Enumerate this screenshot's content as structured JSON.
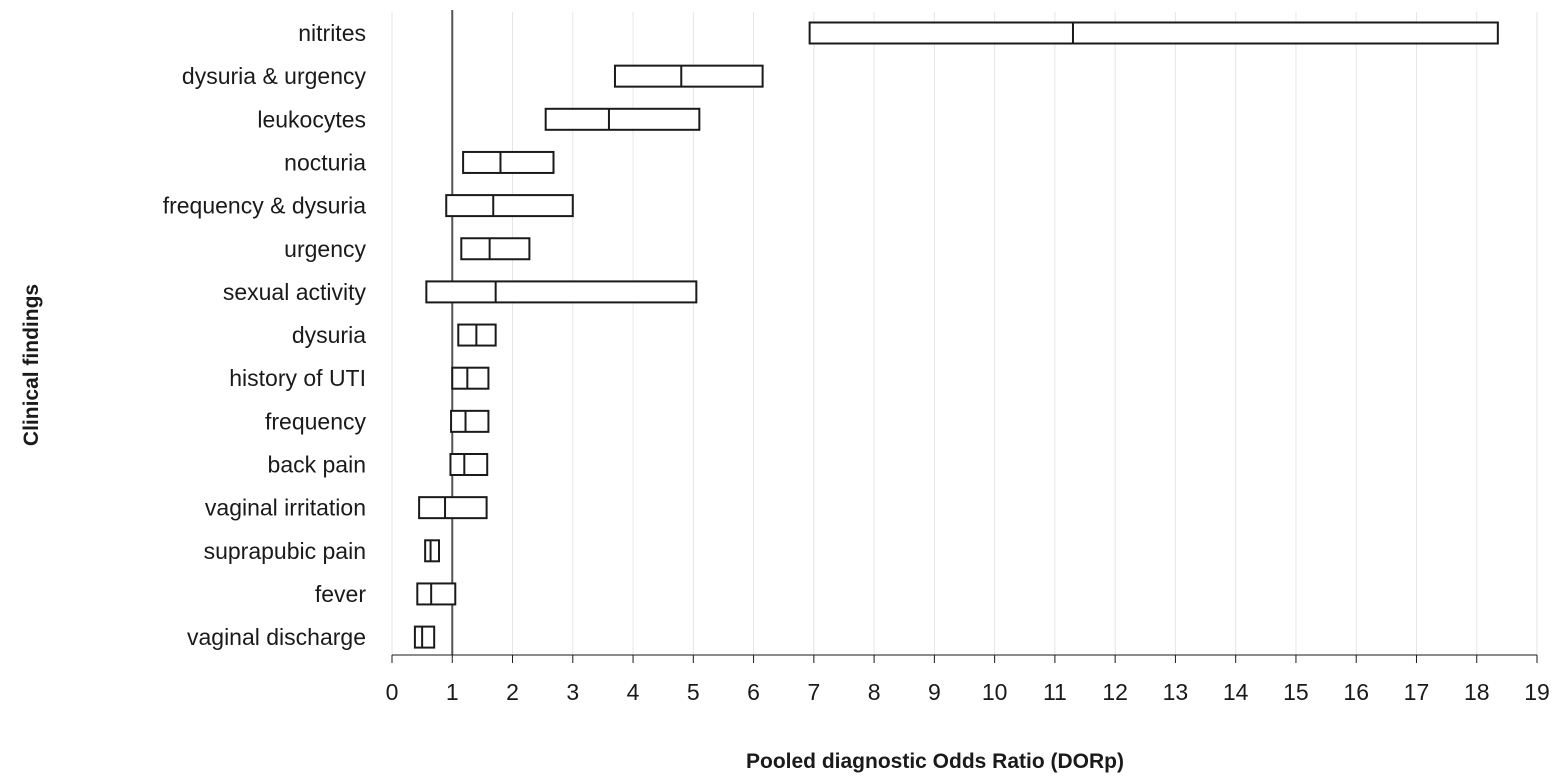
{
  "chart_data": {
    "type": "box",
    "title": "",
    "xlabel": "Pooled diagnostic Odds Ratio (DORp)",
    "ylabel": "Clinical findings",
    "xlim": [
      0,
      19
    ],
    "xticks": [
      0,
      1,
      2,
      3,
      4,
      5,
      6,
      7,
      8,
      9,
      10,
      11,
      12,
      13,
      14,
      15,
      16,
      17,
      18,
      19
    ],
    "reference_line": 1,
    "grid": "vertical",
    "legend": "none",
    "categories": [
      "nitrites",
      "dysuria & urgency",
      "leukocytes",
      "nocturia",
      "frequency & dysuria",
      "urgency",
      "sexual activity",
      "dysuria",
      "history of UTI",
      "frequency",
      "back pain",
      "vaginal irritation",
      "suprapubic pain",
      "fever",
      "vaginal discharge"
    ],
    "intervals": [
      {
        "low": 6.93,
        "point": 11.3,
        "high": 18.35
      },
      {
        "low": 3.7,
        "point": 4.8,
        "high": 6.15
      },
      {
        "low": 2.55,
        "point": 3.6,
        "high": 5.1
      },
      {
        "low": 1.18,
        "point": 1.8,
        "high": 2.68
      },
      {
        "low": 0.9,
        "point": 1.68,
        "high": 3.0
      },
      {
        "low": 1.15,
        "point": 1.62,
        "high": 2.28
      },
      {
        "low": 0.57,
        "point": 1.72,
        "high": 5.05
      },
      {
        "low": 1.1,
        "point": 1.4,
        "high": 1.72
      },
      {
        "low": 1.0,
        "point": 1.25,
        "high": 1.6
      },
      {
        "low": 0.98,
        "point": 1.22,
        "high": 1.6
      },
      {
        "low": 0.97,
        "point": 1.2,
        "high": 1.58
      },
      {
        "low": 0.45,
        "point": 0.88,
        "high": 1.57
      },
      {
        "low": 0.55,
        "point": 0.64,
        "high": 0.78
      },
      {
        "low": 0.42,
        "point": 0.65,
        "high": 1.05
      },
      {
        "low": 0.38,
        "point": 0.5,
        "high": 0.7
      }
    ]
  }
}
